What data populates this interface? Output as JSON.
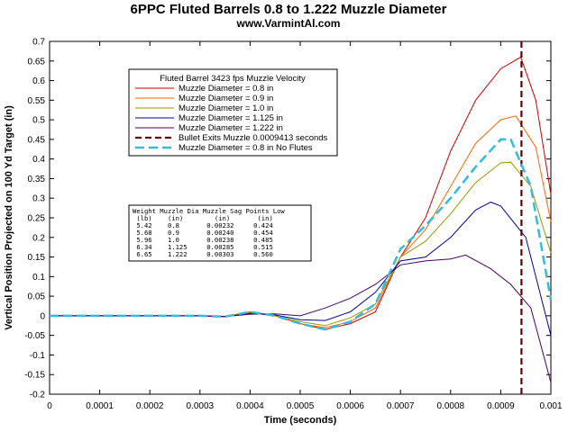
{
  "title": "6PPC Fluted Barrels 0.8 to 1.222 Muzzle Diameter",
  "subtitle": "www.VarmintAl.com",
  "chart_data": {
    "type": "line",
    "xlabel": "Time (seconds)",
    "ylabel": "Vertical Position Projected on 100 Yd Target (in)",
    "xlim": [
      0,
      0.001
    ],
    "ylim": [
      -0.2,
      0.7
    ],
    "x_ticks": [
      "0",
      "0.0001",
      "0.0002",
      "0.0003",
      "0.0004",
      "0.0005",
      "0.0006",
      "0.0007",
      "0.0008",
      "0.0009",
      "0.001"
    ],
    "y_ticks": [
      "-0.2",
      "-0.15",
      "-0.1",
      "-0.05",
      "0",
      "0.05",
      "0.1",
      "0.15",
      "0.2",
      "0.25",
      "0.3",
      "0.35",
      "0.4",
      "0.45",
      "0.5",
      "0.55",
      "0.6",
      "0.65",
      "0.7"
    ],
    "grid": false,
    "legend_title": "Fluted Barrel 3423 fps Muzzle Velocity",
    "series": [
      {
        "name": "Muzzle Diameter = 0.8 in",
        "color": "#cc0000",
        "style": "solid",
        "points": [
          [
            0,
            0
          ],
          [
            0.0003,
            0
          ],
          [
            0.00035,
            -0.002
          ],
          [
            0.0004,
            0.01
          ],
          [
            0.00045,
            0.0
          ],
          [
            0.0005,
            -0.02
          ],
          [
            0.00055,
            -0.035
          ],
          [
            0.0006,
            -0.02
          ],
          [
            0.00065,
            0.01
          ],
          [
            0.0007,
            0.15
          ],
          [
            0.00075,
            0.25
          ],
          [
            0.0008,
            0.42
          ],
          [
            0.00085,
            0.55
          ],
          [
            0.0009,
            0.63
          ],
          [
            0.00094,
            0.66
          ],
          [
            0.00097,
            0.55
          ],
          [
            0.001,
            0.31
          ]
        ]
      },
      {
        "name": "Muzzle Diameter = 0.9 in",
        "color": "#ff6600",
        "style": "solid",
        "points": [
          [
            0,
            0
          ],
          [
            0.0003,
            0
          ],
          [
            0.00035,
            -0.002
          ],
          [
            0.0004,
            0.01
          ],
          [
            0.00045,
            0.0
          ],
          [
            0.0005,
            -0.02
          ],
          [
            0.00055,
            -0.03
          ],
          [
            0.0006,
            -0.015
          ],
          [
            0.00065,
            0.02
          ],
          [
            0.0007,
            0.15
          ],
          [
            0.00075,
            0.22
          ],
          [
            0.0008,
            0.33
          ],
          [
            0.00085,
            0.44
          ],
          [
            0.0009,
            0.5
          ],
          [
            0.00093,
            0.51
          ],
          [
            0.00097,
            0.43
          ],
          [
            0.001,
            0.24
          ]
        ]
      },
      {
        "name": "Muzzle Diameter = 1.0 in",
        "color": "#999900",
        "style": "solid",
        "points": [
          [
            0,
            0
          ],
          [
            0.0003,
            0
          ],
          [
            0.00035,
            -0.002
          ],
          [
            0.0004,
            0.008
          ],
          [
            0.00045,
            0.0
          ],
          [
            0.0005,
            -0.015
          ],
          [
            0.00055,
            -0.025
          ],
          [
            0.0006,
            -0.005
          ],
          [
            0.00065,
            0.03
          ],
          [
            0.0007,
            0.15
          ],
          [
            0.00075,
            0.19
          ],
          [
            0.0008,
            0.26
          ],
          [
            0.00085,
            0.34
          ],
          [
            0.0009,
            0.39
          ],
          [
            0.00092,
            0.392
          ],
          [
            0.00096,
            0.33
          ],
          [
            0.001,
            0.16
          ]
        ]
      },
      {
        "name": "Muzzle Diameter = 1.125 in",
        "color": "#000099",
        "style": "solid",
        "points": [
          [
            0,
            0
          ],
          [
            0.0003,
            0
          ],
          [
            0.00035,
            -0.002
          ],
          [
            0.0004,
            0.006
          ],
          [
            0.00045,
            0.002
          ],
          [
            0.0005,
            -0.01
          ],
          [
            0.00055,
            -0.012
          ],
          [
            0.0006,
            0.01
          ],
          [
            0.00065,
            0.06
          ],
          [
            0.0007,
            0.14
          ],
          [
            0.00075,
            0.15
          ],
          [
            0.0008,
            0.2
          ],
          [
            0.00085,
            0.27
          ],
          [
            0.00088,
            0.29
          ],
          [
            0.0009,
            0.28
          ],
          [
            0.00095,
            0.2
          ],
          [
            0.001,
            -0.05
          ]
        ]
      },
      {
        "name": "Muzzle Diameter = 1.222 in",
        "color": "#440066",
        "style": "solid",
        "points": [
          [
            0,
            0
          ],
          [
            0.0003,
            0
          ],
          [
            0.00035,
            -0.002
          ],
          [
            0.0004,
            0.004
          ],
          [
            0.00045,
            0.005
          ],
          [
            0.0005,
            0.0
          ],
          [
            0.00055,
            0.02
          ],
          [
            0.0006,
            0.045
          ],
          [
            0.00065,
            0.08
          ],
          [
            0.0007,
            0.13
          ],
          [
            0.00075,
            0.14
          ],
          [
            0.0008,
            0.145
          ],
          [
            0.00083,
            0.155
          ],
          [
            0.00088,
            0.12
          ],
          [
            0.00092,
            0.08
          ],
          [
            0.00096,
            0.02
          ],
          [
            0.001,
            -0.17
          ]
        ]
      },
      {
        "name": "Bullet Exits Muzzle 0.0009413 seconds",
        "color": "#660000",
        "style": "dashed-vertical",
        "points": [
          [
            0.0009413,
            -0.2
          ],
          [
            0.0009413,
            0.7
          ]
        ]
      },
      {
        "name": "Muzzle Diameter = 0.8 in No Flutes",
        "color": "#33bbdd",
        "style": "dashed",
        "points": [
          [
            0,
            0
          ],
          [
            0.0003,
            0
          ],
          [
            0.00035,
            -0.002
          ],
          [
            0.0004,
            0.01
          ],
          [
            0.00045,
            0.0
          ],
          [
            0.0005,
            -0.02
          ],
          [
            0.00055,
            -0.035
          ],
          [
            0.0006,
            -0.015
          ],
          [
            0.00065,
            0.03
          ],
          [
            0.0007,
            0.17
          ],
          [
            0.00075,
            0.23
          ],
          [
            0.0008,
            0.3
          ],
          [
            0.00085,
            0.38
          ],
          [
            0.0009,
            0.45
          ],
          [
            0.00092,
            0.45
          ],
          [
            0.00096,
            0.33
          ],
          [
            0.001,
            0.04
          ]
        ]
      }
    ]
  },
  "table": {
    "lines": [
      "Weight Muzzle Dia Muzzle Sag Points Low",
      " (lb)    (in)        (in)       (in)",
      " 5.42    0.8       0.00232     0.424",
      " 5.68    0.9       0.00240     0.454",
      " 5.96    1.0       0.00238     0.485",
      " 6.34    1.125     0.00285     0.515",
      " 6.65    1.222     0.00303     0.560"
    ]
  }
}
